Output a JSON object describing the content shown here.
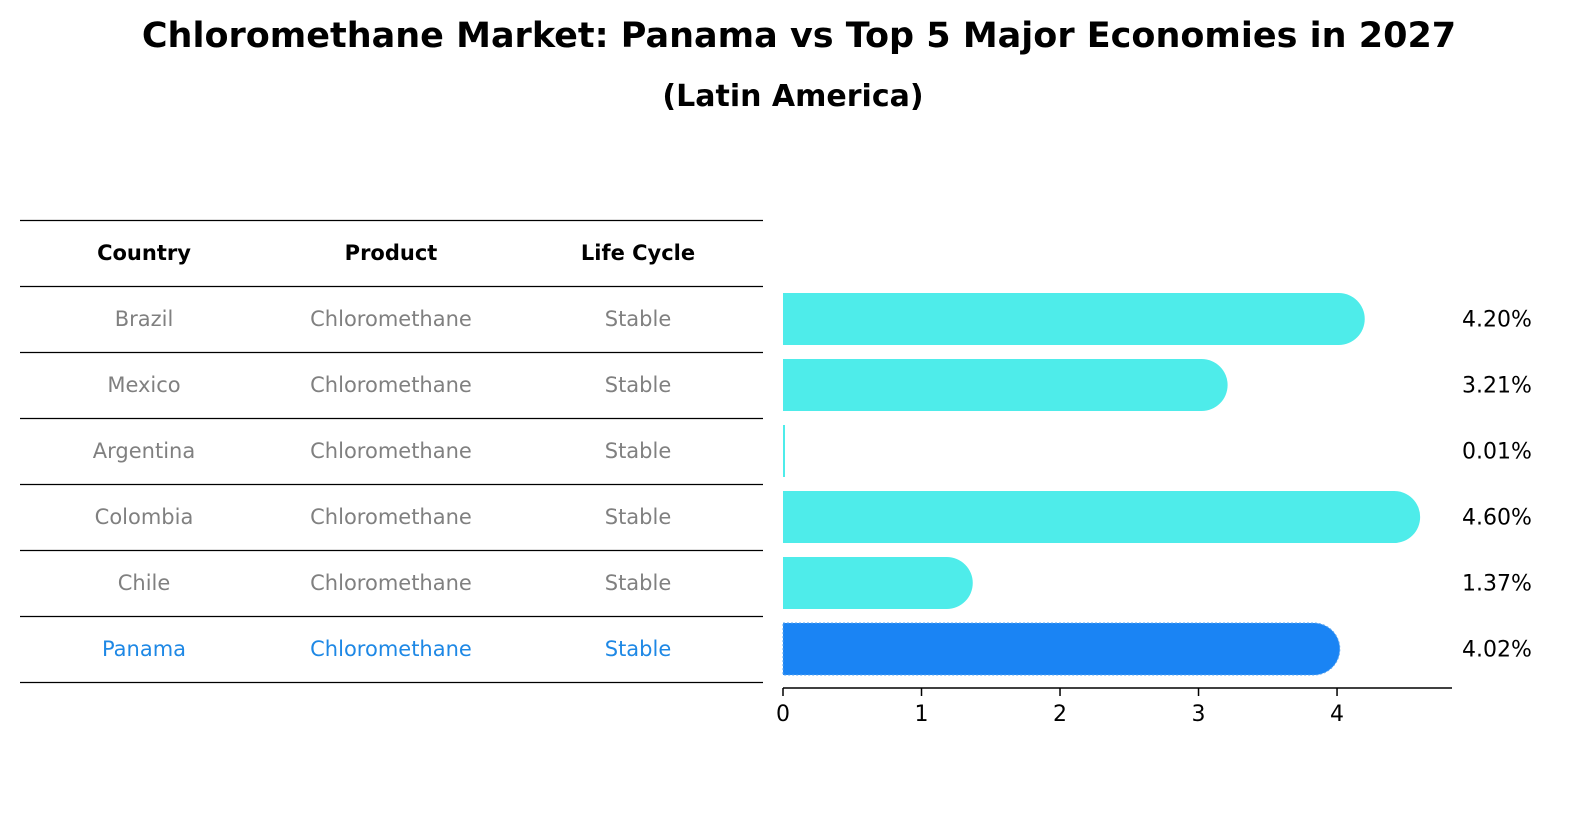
{
  "chart_data": {
    "type": "bar",
    "orientation": "horizontal",
    "title": "Chloromethane Market: Panama vs Top 5 Major Economies in 2027",
    "subtitle": "(Latin America)",
    "table": {
      "columns": [
        "Country",
        "Product",
        "Life Cycle"
      ],
      "rows": [
        [
          "Brazil",
          "Chloromethane",
          "Stable"
        ],
        [
          "Mexico",
          "Chloromethane",
          "Stable"
        ],
        [
          "Argentina",
          "Chloromethane",
          "Stable"
        ],
        [
          "Colombia",
          "Chloromethane",
          "Stable"
        ],
        [
          "Chile",
          "Chloromethane",
          "Stable"
        ],
        [
          "Panama",
          "Chloromethane",
          "Stable"
        ]
      ],
      "highlight_row": 5
    },
    "categories": [
      "Brazil",
      "Mexico",
      "Argentina",
      "Colombia",
      "Chile",
      "Panama"
    ],
    "values": [
      4.2,
      3.21,
      0.01,
      4.6,
      1.37,
      4.02
    ],
    "value_labels": [
      "4.20%",
      "3.21%",
      "0.01%",
      "4.60%",
      "1.37%",
      "4.02%"
    ],
    "xlim": [
      0,
      4.83
    ],
    "xticks": [
      0,
      1,
      2,
      3,
      4
    ],
    "xlabel": "",
    "ylabel": "",
    "grid": false,
    "colors": {
      "bar": "#4eecea",
      "highlight_bar": "#1a84f4",
      "highlight_text": "#1e88e5",
      "muted_text": "#808080"
    }
  }
}
